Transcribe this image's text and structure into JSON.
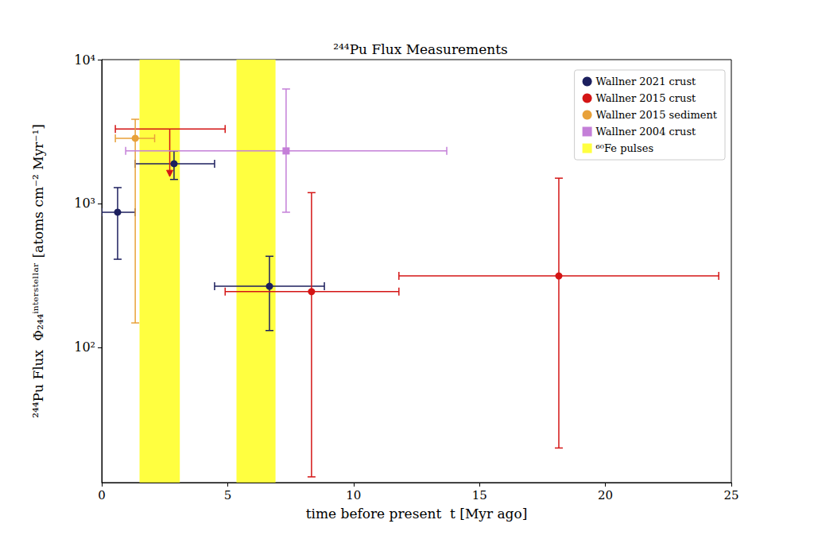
{
  "chart_data": {
    "type": "scatter",
    "title": "²⁴⁴Pu Flux Measurements",
    "xlabel": "time before present  t [Myr ago]",
    "ylabel": "²⁴⁴Pu Flux  Φ₂₄₄ⁱⁿᵗᵉʳˢᵗᵉˡˡᵃʳ [atoms cm⁻² Myr⁻¹]",
    "log": "y",
    "grid": false,
    "legend": "upper right",
    "xlim": [
      0,
      25
    ],
    "xticks": [
      0,
      5,
      10,
      15,
      20,
      25
    ],
    "ylim": [
      11.5,
      10000
    ],
    "yticks": [
      {
        "value": 100,
        "label": "10²"
      },
      {
        "value": 1000,
        "label": "10³"
      },
      {
        "value": 10000,
        "label": "10⁴"
      }
    ],
    "series": [
      {
        "name": "Wallner 2021 crust",
        "color": "#1c1f5e",
        "marker": "circle",
        "x": [
          0.63,
          2.87,
          6.66
        ],
        "y": [
          870,
          1890,
          266
        ],
        "x_low": [
          0,
          1.33,
          4.48
        ],
        "x_high": [
          1.33,
          4.48,
          8.84
        ],
        "y_low": [
          410,
          1470,
          131
        ],
        "y_high": [
          1290,
          2320,
          430
        ],
        "upper_limit": [
          false,
          false,
          false
        ]
      },
      {
        "name": "Wallner 2015 crust",
        "color": "#d41515",
        "marker": "circle",
        "x": [
          2.7,
          8.33,
          18.15
        ],
        "y": [
          3300,
          244,
          314
        ],
        "x_low": [
          0.54,
          4.9,
          11.8
        ],
        "x_high": [
          4.9,
          11.8,
          24.5
        ],
        "y_low": [
          null,
          12.6,
          20
        ],
        "y_high": [
          null,
          1190,
          1500
        ],
        "upper_limit": [
          true,
          false,
          false
        ]
      },
      {
        "name": "Wallner 2015 sediment",
        "color": "#e8a13a",
        "marker": "circle",
        "x": [
          1.33
        ],
        "y": [
          2840
        ],
        "x_low": [
          0.54
        ],
        "x_high": [
          2.1
        ],
        "y_low": [
          148
        ],
        "y_high": [
          3850
        ],
        "upper_limit": [
          false
        ]
      },
      {
        "name": "Wallner 2004 crust",
        "color": "#c47fd8",
        "marker": "square",
        "x": [
          7.32
        ],
        "y": [
          2320
        ],
        "x_low": [
          0.95
        ],
        "x_high": [
          13.7
        ],
        "y_low": [
          870
        ],
        "y_high": [
          6250
        ],
        "upper_limit": [
          false
        ]
      }
    ],
    "bands": {
      "name": "⁶⁰Fe pulses",
      "color": "#ffff40",
      "ranges": [
        [
          1.5,
          3.1
        ],
        [
          5.35,
          6.9
        ]
      ]
    }
  }
}
